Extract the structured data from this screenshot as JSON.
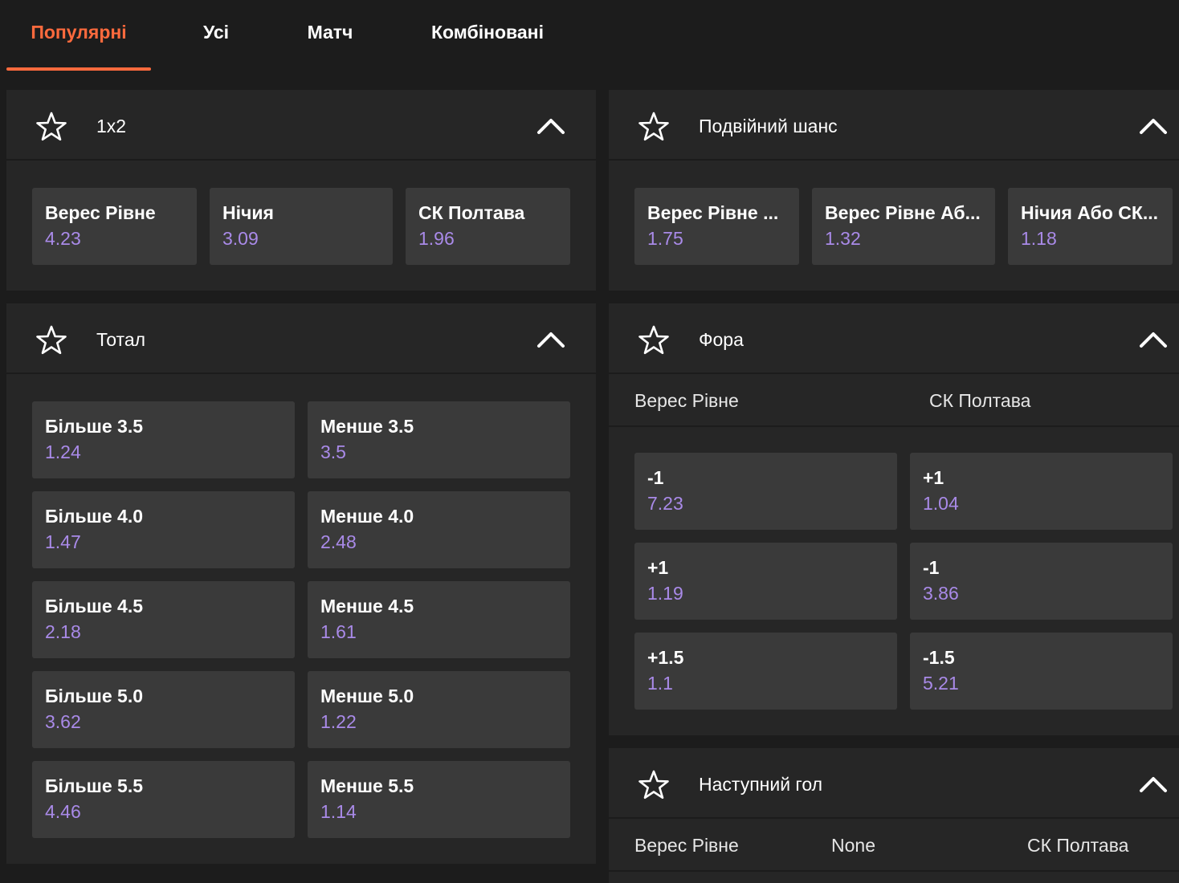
{
  "tabs": [
    "Популярні",
    "Усі",
    "Матч",
    "Комбіновані"
  ],
  "accent_color": "#ff6a3d",
  "odds_color": "#a98ae8",
  "icons": {
    "favorite": "star-outline-icon",
    "collapse": "chevron-up-icon"
  },
  "market_1x2": {
    "title": "1x2",
    "outcomes": [
      {
        "label": "Верес Рівне",
        "odds": "4.23"
      },
      {
        "label": "Нічия",
        "odds": "3.09"
      },
      {
        "label": "СК Полтава",
        "odds": "1.96"
      }
    ]
  },
  "market_double": {
    "title": "Подвійний шанс",
    "outcomes": [
      {
        "label": "Верес Рівне ...",
        "odds": "1.75"
      },
      {
        "label": "Верес Рівне Аб...",
        "odds": "1.32"
      },
      {
        "label": "Нічия Або СК...",
        "odds": "1.18"
      }
    ]
  },
  "market_total": {
    "title": "Тотал",
    "rows": [
      [
        {
          "label": "Більше 3.5",
          "odds": "1.24"
        },
        {
          "label": "Менше 3.5",
          "odds": "3.5"
        }
      ],
      [
        {
          "label": "Більше 4.0",
          "odds": "1.47"
        },
        {
          "label": "Менше 4.0",
          "odds": "2.48"
        }
      ],
      [
        {
          "label": "Більше 4.5",
          "odds": "2.18"
        },
        {
          "label": "Менше 4.5",
          "odds": "1.61"
        }
      ],
      [
        {
          "label": "Більше 5.0",
          "odds": "3.62"
        },
        {
          "label": "Менше 5.0",
          "odds": "1.22"
        }
      ],
      [
        {
          "label": "Більше 5.5",
          "odds": "4.46"
        },
        {
          "label": "Менше 5.5",
          "odds": "1.14"
        }
      ]
    ]
  },
  "market_handicap": {
    "title": "Фора",
    "team_home": "Верес Рівне",
    "team_away": "СК Полтава",
    "rows": [
      [
        {
          "label": "-1",
          "odds": "7.23"
        },
        {
          "label": "+1",
          "odds": "1.04"
        }
      ],
      [
        {
          "label": "+1",
          "odds": "1.19"
        },
        {
          "label": "-1",
          "odds": "3.86"
        }
      ],
      [
        {
          "label": "+1.5",
          "odds": "1.1"
        },
        {
          "label": "-1.5",
          "odds": "5.21"
        }
      ]
    ]
  },
  "market_next_goal": {
    "title": "Наступний гол",
    "col_home": "Верес Рівне",
    "col_none": "None",
    "col_away": "СК Полтава"
  }
}
